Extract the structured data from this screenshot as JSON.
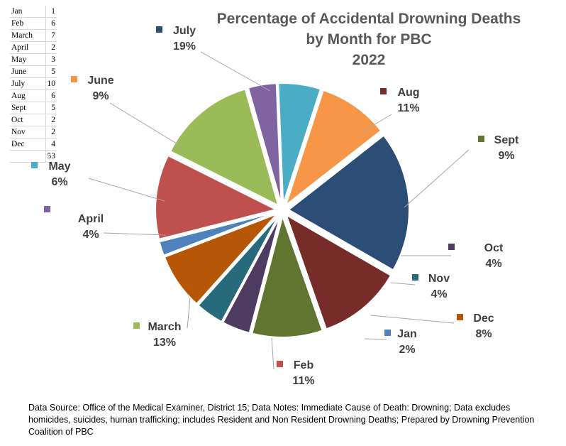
{
  "table": {
    "rows": [
      {
        "month": "Jan",
        "count": "1"
      },
      {
        "month": "Feb",
        "count": "6"
      },
      {
        "month": "March",
        "count": "7"
      },
      {
        "month": "April",
        "count": "2"
      },
      {
        "month": "May",
        "count": "3"
      },
      {
        "month": "June",
        "count": "5"
      },
      {
        "month": "July",
        "count": "10"
      },
      {
        "month": "Aug",
        "count": "6"
      },
      {
        "month": "Sept",
        "count": "5"
      },
      {
        "month": "Oct",
        "count": "2"
      },
      {
        "month": "Nov",
        "count": "2"
      },
      {
        "month": "Dec",
        "count": "4"
      }
    ],
    "total": "53"
  },
  "chart_data": {
    "type": "pie",
    "title_lines": [
      "Percentage of Accidental Drowning Deaths",
      "by Month for PBC",
      "2022"
    ],
    "slices": [
      {
        "label": "Jan",
        "value": 1,
        "pct": "2%",
        "color": "#4f81bd"
      },
      {
        "label": "Feb",
        "value": 6,
        "pct": "11%",
        "color": "#c0504d"
      },
      {
        "label": "March",
        "value": 7,
        "pct": "13%",
        "color": "#9bbb59"
      },
      {
        "label": "April",
        "value": 2,
        "pct": "4%",
        "color": "#8064a2"
      },
      {
        "label": "May",
        "value": 3,
        "pct": "6%",
        "color": "#4bacc6"
      },
      {
        "label": "June",
        "value": 5,
        "pct": "9%",
        "color": "#f79646"
      },
      {
        "label": "July",
        "value": 10,
        "pct": "19%",
        "color": "#2c4d75"
      },
      {
        "label": "Aug",
        "value": 6,
        "pct": "11%",
        "color": "#772c2a"
      },
      {
        "label": "Sept",
        "value": 5,
        "pct": "9%",
        "color": "#5f7530"
      },
      {
        "label": "Oct",
        "value": 2,
        "pct": "4%",
        "color": "#4d3b62"
      },
      {
        "label": "Nov",
        "value": 2,
        "pct": "4%",
        "color": "#276a7c"
      },
      {
        "label": "Dec",
        "value": 4,
        "pct": "8%",
        "color": "#b65708"
      }
    ]
  },
  "footnote": "Data Source: Office of the Medical Examiner, District 15; Data Notes: Immediate Cause of Death: Drowning; Data excludes homicides, suicides, human trafficking; includes Resident and Non Resident Drowning Deaths; Prepared by Drowning Prevention Coalition of PBC"
}
